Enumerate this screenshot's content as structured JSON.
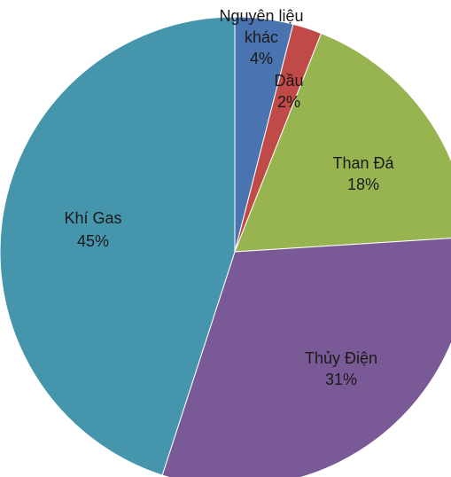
{
  "chart_data": {
    "type": "pie",
    "title": "",
    "start_angle_deg": 0,
    "direction": "clockwise",
    "slices": [
      {
        "name": "Nguyên liệu khác",
        "name_lines": [
          "Nguyên liệu",
          "khác"
        ],
        "value": 4,
        "label": "4%",
        "color": "#4a74b0"
      },
      {
        "name": "Dầu",
        "name_lines": [
          "Dầu"
        ],
        "value": 2,
        "label": "2%",
        "color": "#c04a47"
      },
      {
        "name": "Than Đá",
        "name_lines": [
          "Than Đá"
        ],
        "value": 18,
        "label": "18%",
        "color": "#97b451"
      },
      {
        "name": "Thủy Điện",
        "name_lines": [
          "Thủy Điện"
        ],
        "value": 31,
        "label": "31%",
        "color": "#7a5997"
      },
      {
        "name": "Khí Gas",
        "name_lines": [
          "Khí Gas"
        ],
        "value": 45,
        "label": "45%",
        "color": "#4596ad"
      }
    ]
  }
}
